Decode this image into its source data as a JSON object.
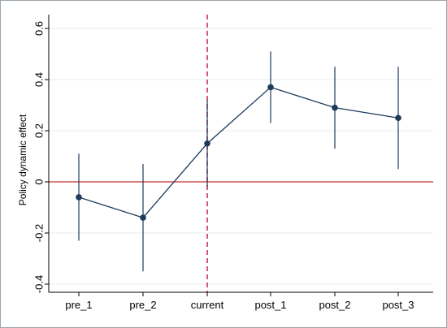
{
  "chart_data": {
    "type": "line",
    "title": "",
    "xlabel": "",
    "ylabel": "Policy dynamic effect",
    "categories": [
      "pre_1",
      "pre_2",
      "current",
      "post_1",
      "post_2",
      "post_3"
    ],
    "series": [
      {
        "values": [
          -0.06,
          -0.14,
          0.15,
          0.37,
          0.29,
          0.25
        ],
        "ci_lower": [
          -0.23,
          -0.35,
          -0.02,
          0.23,
          0.13,
          0.05
        ],
        "ci_upper": [
          0.11,
          0.07,
          0.32,
          0.51,
          0.45,
          0.45
        ]
      }
    ],
    "ylim": [
      -0.4,
      0.6
    ],
    "yticks": [
      -0.4,
      -0.2,
      0,
      0.2,
      0.4,
      0.6
    ],
    "ytick_labels": [
      "-0.4",
      "-0.2",
      "0",
      "0.2",
      "0.4",
      "0.6"
    ],
    "reference_lines": {
      "horizontal_y": 0,
      "vertical_category": "current"
    },
    "grid": true,
    "legend": "none",
    "colors": {
      "series": "#1f3b5c",
      "horizontal_reference": "#c9302c",
      "vertical_reference": "#d6285a",
      "grid": "#e6ecf1",
      "axis": "#000000",
      "frame": "#9aa4ad"
    }
  }
}
